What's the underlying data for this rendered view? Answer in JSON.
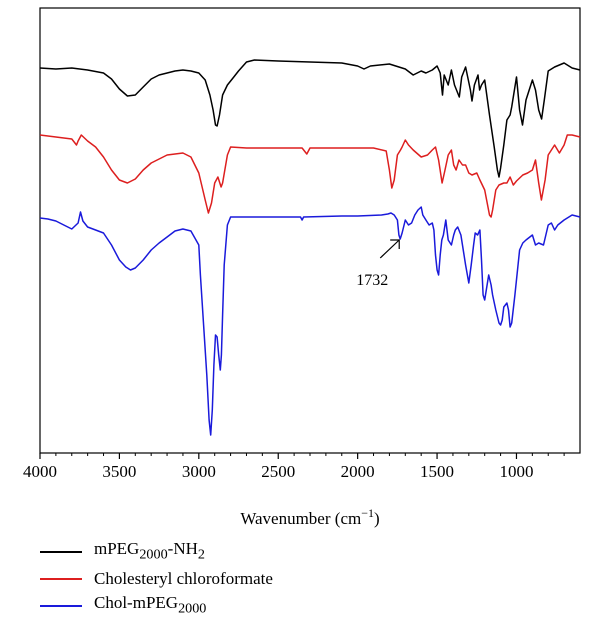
{
  "chart_data": {
    "type": "line",
    "title": "",
    "xlabel": "Wavenumber",
    "xlabel_unit": "(cm",
    "xlabel_sup": "−1",
    "xlabel_close": ")",
    "ylabel": "",
    "xlim": [
      4000,
      600
    ],
    "x_reversed": true,
    "grid": false,
    "x_ticks": [
      4000,
      3500,
      3000,
      2500,
      2000,
      1500,
      1000
    ],
    "x_tick_labels": [
      "4000",
      "3500",
      "3000",
      "2500",
      "2000",
      "1500",
      "1000"
    ],
    "legend_position": "below",
    "annotations": [
      {
        "text": "1732",
        "series": "Chol-mPEG2000",
        "x": 1732
      }
    ],
    "series": [
      {
        "name": "mPEG2000-NH2",
        "legend_base": "mPEG",
        "legend_sub": "2000",
        "legend_tail": "-NH",
        "legend_sub2": "2",
        "color": "#000000",
        "offset": 65,
        "points": [
          [
            4000,
            3
          ],
          [
            3900,
            4
          ],
          [
            3800,
            3
          ],
          [
            3700,
            5
          ],
          [
            3600,
            8
          ],
          [
            3550,
            14
          ],
          [
            3500,
            24
          ],
          [
            3450,
            31
          ],
          [
            3400,
            30
          ],
          [
            3350,
            22
          ],
          [
            3300,
            14
          ],
          [
            3250,
            10
          ],
          [
            3200,
            8
          ],
          [
            3150,
            6
          ],
          [
            3100,
            5
          ],
          [
            3050,
            6
          ],
          [
            3000,
            8
          ],
          [
            2960,
            15
          ],
          [
            2930,
            30
          ],
          [
            2910,
            45
          ],
          [
            2895,
            60
          ],
          [
            2885,
            61
          ],
          [
            2870,
            50
          ],
          [
            2850,
            30
          ],
          [
            2820,
            20
          ],
          [
            2780,
            12
          ],
          [
            2750,
            6
          ],
          [
            2700,
            -3
          ],
          [
            2650,
            -5
          ],
          [
            2500,
            -4
          ],
          [
            2300,
            -3
          ],
          [
            2100,
            -2
          ],
          [
            2000,
            1
          ],
          [
            1960,
            4
          ],
          [
            1920,
            1
          ],
          [
            1800,
            -1
          ],
          [
            1700,
            4
          ],
          [
            1650,
            10
          ],
          [
            1600,
            6
          ],
          [
            1570,
            8
          ],
          [
            1530,
            5
          ],
          [
            1500,
            1
          ],
          [
            1480,
            8
          ],
          [
            1466,
            30
          ],
          [
            1455,
            10
          ],
          [
            1430,
            20
          ],
          [
            1410,
            5
          ],
          [
            1390,
            20
          ],
          [
            1360,
            32
          ],
          [
            1345,
            12
          ],
          [
            1320,
            2
          ],
          [
            1290,
            25
          ],
          [
            1280,
            36
          ],
          [
            1265,
            20
          ],
          [
            1242,
            10
          ],
          [
            1232,
            25
          ],
          [
            1220,
            20
          ],
          [
            1200,
            15
          ],
          [
            1170,
            50
          ],
          [
            1140,
            82
          ],
          [
            1120,
            105
          ],
          [
            1110,
            112
          ],
          [
            1100,
            103
          ],
          [
            1080,
            80
          ],
          [
            1060,
            55
          ],
          [
            1040,
            50
          ],
          [
            1030,
            42
          ],
          [
            1000,
            12
          ],
          [
            980,
            45
          ],
          [
            962,
            60
          ],
          [
            940,
            35
          ],
          [
            900,
            15
          ],
          [
            880,
            25
          ],
          [
            860,
            45
          ],
          [
            842,
            54
          ],
          [
            825,
            35
          ],
          [
            800,
            6
          ],
          [
            760,
            2
          ],
          [
            700,
            -2
          ],
          [
            650,
            3
          ],
          [
            600,
            5
          ]
        ]
      },
      {
        "name": "Cholesteryl chloroformate",
        "legend_text": "Cholesteryl chloroformate",
        "color": "#dd1f1f",
        "offset": 135,
        "points": [
          [
            4000,
            0
          ],
          [
            3900,
            2
          ],
          [
            3800,
            4
          ],
          [
            3770,
            10
          ],
          [
            3760,
            6
          ],
          [
            3740,
            0
          ],
          [
            3700,
            6
          ],
          [
            3650,
            12
          ],
          [
            3600,
            22
          ],
          [
            3550,
            35
          ],
          [
            3500,
            45
          ],
          [
            3450,
            48
          ],
          [
            3400,
            44
          ],
          [
            3350,
            35
          ],
          [
            3300,
            28
          ],
          [
            3200,
            20
          ],
          [
            3100,
            18
          ],
          [
            3050,
            22
          ],
          [
            3000,
            38
          ],
          [
            2960,
            65
          ],
          [
            2940,
            78
          ],
          [
            2920,
            68
          ],
          [
            2900,
            48
          ],
          [
            2880,
            42
          ],
          [
            2860,
            52
          ],
          [
            2850,
            48
          ],
          [
            2820,
            20
          ],
          [
            2800,
            12
          ],
          [
            2700,
            13
          ],
          [
            2500,
            13
          ],
          [
            2350,
            13
          ],
          [
            2320,
            19
          ],
          [
            2300,
            13
          ],
          [
            2100,
            13
          ],
          [
            1900,
            13
          ],
          [
            1820,
            16
          ],
          [
            1800,
            35
          ],
          [
            1785,
            53
          ],
          [
            1770,
            45
          ],
          [
            1750,
            20
          ],
          [
            1730,
            15
          ],
          [
            1720,
            12
          ],
          [
            1700,
            5
          ],
          [
            1680,
            10
          ],
          [
            1650,
            15
          ],
          [
            1600,
            22
          ],
          [
            1560,
            20
          ],
          [
            1530,
            15
          ],
          [
            1510,
            12
          ],
          [
            1490,
            25
          ],
          [
            1468,
            48
          ],
          [
            1450,
            35
          ],
          [
            1430,
            20
          ],
          [
            1410,
            15
          ],
          [
            1395,
            30
          ],
          [
            1380,
            35
          ],
          [
            1362,
            25
          ],
          [
            1340,
            30
          ],
          [
            1320,
            30
          ],
          [
            1300,
            38
          ],
          [
            1280,
            40
          ],
          [
            1250,
            38
          ],
          [
            1230,
            45
          ],
          [
            1200,
            55
          ],
          [
            1170,
            80
          ],
          [
            1160,
            82
          ],
          [
            1150,
            75
          ],
          [
            1130,
            55
          ],
          [
            1110,
            50
          ],
          [
            1080,
            48
          ],
          [
            1060,
            48
          ],
          [
            1040,
            42
          ],
          [
            1020,
            50
          ],
          [
            1000,
            46
          ],
          [
            960,
            40
          ],
          [
            930,
            38
          ],
          [
            900,
            35
          ],
          [
            880,
            25
          ],
          [
            860,
            48
          ],
          [
            843,
            65
          ],
          [
            820,
            45
          ],
          [
            800,
            20
          ],
          [
            760,
            10
          ],
          [
            730,
            18
          ],
          [
            700,
            10
          ],
          [
            680,
            0
          ],
          [
            650,
            0
          ],
          [
            600,
            2
          ]
        ]
      },
      {
        "name": "Chol-mPEG2000",
        "legend_base": "Chol-mPEG",
        "legend_sub": "2000",
        "color": "#1a1adb",
        "offset": 215,
        "points": [
          [
            4000,
            3
          ],
          [
            3950,
            4
          ],
          [
            3900,
            6
          ],
          [
            3850,
            10
          ],
          [
            3800,
            14
          ],
          [
            3760,
            8
          ],
          [
            3745,
            -3
          ],
          [
            3730,
            6
          ],
          [
            3700,
            12
          ],
          [
            3650,
            15
          ],
          [
            3600,
            18
          ],
          [
            3550,
            30
          ],
          [
            3500,
            45
          ],
          [
            3460,
            52
          ],
          [
            3430,
            55
          ],
          [
            3400,
            53
          ],
          [
            3350,
            45
          ],
          [
            3300,
            35
          ],
          [
            3250,
            28
          ],
          [
            3200,
            22
          ],
          [
            3150,
            16
          ],
          [
            3100,
            14
          ],
          [
            3050,
            16
          ],
          [
            3000,
            30
          ],
          [
            2990,
            60
          ],
          [
            2970,
            110
          ],
          [
            2950,
            160
          ],
          [
            2935,
            205
          ],
          [
            2925,
            220
          ],
          [
            2915,
            195
          ],
          [
            2905,
            150
          ],
          [
            2895,
            120
          ],
          [
            2885,
            122
          ],
          [
            2875,
            140
          ],
          [
            2865,
            155
          ],
          [
            2858,
            140
          ],
          [
            2850,
            100
          ],
          [
            2840,
            50
          ],
          [
            2820,
            10
          ],
          [
            2800,
            2
          ],
          [
            2700,
            2
          ],
          [
            2500,
            2
          ],
          [
            2360,
            2
          ],
          [
            2350,
            5
          ],
          [
            2340,
            2
          ],
          [
            2100,
            1
          ],
          [
            2000,
            1
          ],
          [
            1850,
            0
          ],
          [
            1810,
            -1
          ],
          [
            1790,
            -2
          ],
          [
            1770,
            0
          ],
          [
            1750,
            5
          ],
          [
            1740,
            20
          ],
          [
            1732,
            24
          ],
          [
            1720,
            18
          ],
          [
            1700,
            5
          ],
          [
            1680,
            10
          ],
          [
            1660,
            8
          ],
          [
            1640,
            0
          ],
          [
            1620,
            -5
          ],
          [
            1600,
            -8
          ],
          [
            1590,
            0
          ],
          [
            1570,
            5
          ],
          [
            1550,
            10
          ],
          [
            1530,
            8
          ],
          [
            1520,
            15
          ],
          [
            1510,
            40
          ],
          [
            1500,
            55
          ],
          [
            1490,
            60
          ],
          [
            1480,
            40
          ],
          [
            1470,
            25
          ],
          [
            1460,
            20
          ],
          [
            1445,
            5
          ],
          [
            1430,
            25
          ],
          [
            1410,
            30
          ],
          [
            1395,
            20
          ],
          [
            1385,
            15
          ],
          [
            1370,
            12
          ],
          [
            1350,
            20
          ],
          [
            1320,
            50
          ],
          [
            1300,
            68
          ],
          [
            1285,
            50
          ],
          [
            1270,
            30
          ],
          [
            1260,
            18
          ],
          [
            1245,
            20
          ],
          [
            1230,
            15
          ],
          [
            1220,
            45
          ],
          [
            1210,
            80
          ],
          [
            1200,
            85
          ],
          [
            1190,
            75
          ],
          [
            1175,
            60
          ],
          [
            1160,
            70
          ],
          [
            1150,
            80
          ],
          [
            1130,
            95
          ],
          [
            1110,
            108
          ],
          [
            1100,
            110
          ],
          [
            1090,
            105
          ],
          [
            1080,
            92
          ],
          [
            1060,
            88
          ],
          [
            1050,
            95
          ],
          [
            1040,
            112
          ],
          [
            1030,
            108
          ],
          [
            1010,
            80
          ],
          [
            980,
            35
          ],
          [
            960,
            28
          ],
          [
            940,
            25
          ],
          [
            900,
            20
          ],
          [
            880,
            30
          ],
          [
            860,
            28
          ],
          [
            830,
            30
          ],
          [
            800,
            10
          ],
          [
            780,
            8
          ],
          [
            760,
            15
          ],
          [
            740,
            10
          ],
          [
            700,
            5
          ],
          [
            650,
            0
          ],
          [
            600,
            2
          ]
        ]
      }
    ]
  }
}
